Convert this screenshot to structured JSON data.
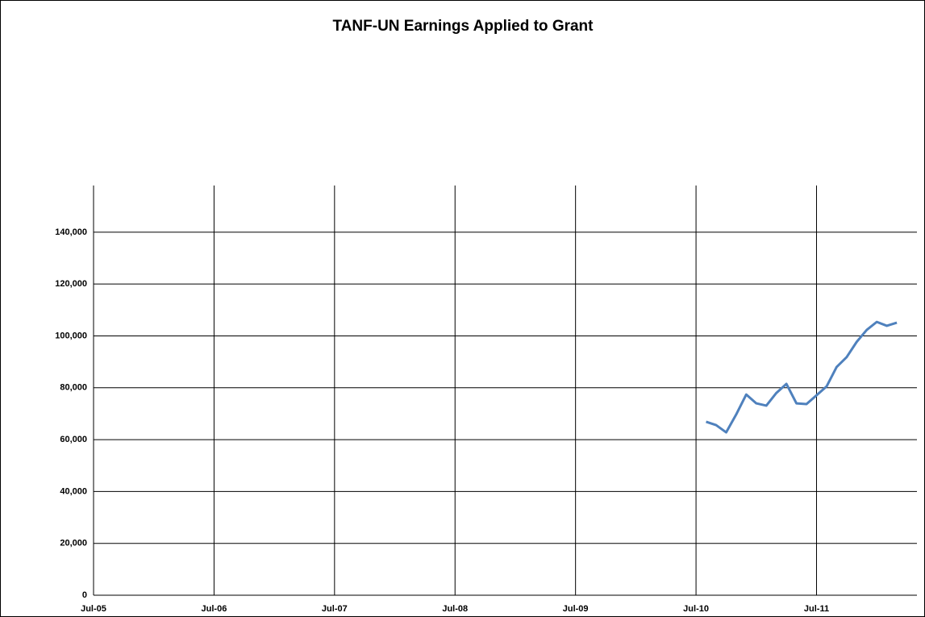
{
  "chart_data": {
    "type": "line",
    "title": "TANF-UN Earnings Applied to Grant",
    "x": [
      "2010-08",
      "2010-09",
      "2010-10",
      "2010-11",
      "2010-12",
      "2011-01",
      "2011-02",
      "2011-03",
      "2011-04",
      "2011-05",
      "2011-06",
      "2011-07",
      "2011-08",
      "2011-09",
      "2011-10",
      "2011-11",
      "2011-12",
      "2012-01",
      "2012-02",
      "2012-03"
    ],
    "series": [
      {
        "name": "TANF-UN Earnings Applied to Grant",
        "color": "#4f81bd",
        "values": [
          66900,
          65600,
          62800,
          69700,
          77400,
          74000,
          73100,
          78000,
          81500,
          74000,
          73700,
          77100,
          80500,
          88000,
          91800,
          97700,
          102300,
          105400,
          103900,
          105100
        ]
      }
    ],
    "xticks": [
      {
        "value": "2005-07",
        "label": "Jul-05"
      },
      {
        "value": "2006-07",
        "label": "Jul-06"
      },
      {
        "value": "2007-07",
        "label": "Jul-07"
      },
      {
        "value": "2008-07",
        "label": "Jul-08"
      },
      {
        "value": "2009-07",
        "label": "Jul-09"
      },
      {
        "value": "2010-07",
        "label": "Jul-10"
      },
      {
        "value": "2011-07",
        "label": "Jul-11"
      }
    ],
    "xlim": [
      "2005-07",
      "2012-05"
    ],
    "ylim": [
      0,
      158000
    ],
    "yticks": [
      0,
      {
        "value": 20000,
        "label": "20,000"
      },
      {
        "value": 40000,
        "label": "40,000"
      },
      {
        "value": 60000,
        "label": "60,000"
      },
      {
        "value": 80000,
        "label": "80,000"
      },
      {
        "value": 100000,
        "label": "100,000"
      },
      {
        "value": 120000,
        "label": "120,000"
      },
      {
        "value": 140000,
        "label": "140,000"
      }
    ],
    "grid": true
  }
}
